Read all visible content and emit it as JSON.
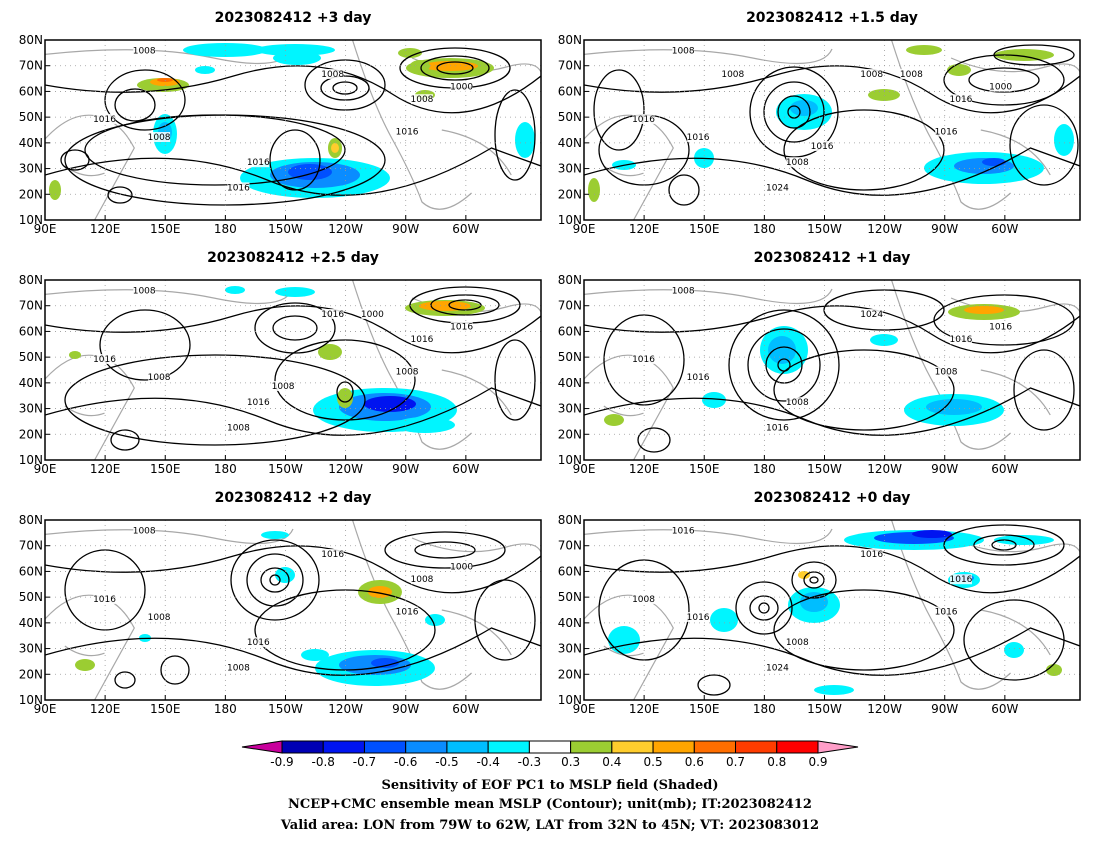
{
  "panels": [
    {
      "title": "2023082412 +3 day",
      "contour_labels": [
        "1008",
        "1016",
        "1008",
        "1016",
        "1016",
        "1008",
        "1008",
        "1016",
        "1000"
      ]
    },
    {
      "title": "2023082412 +1.5 day",
      "contour_labels": [
        "1008",
        "1016",
        "1016",
        "1008",
        "1024",
        "1008",
        "1016",
        "1016",
        "1000",
        "1008",
        "1016",
        "1008"
      ]
    },
    {
      "title": "2023082412 +2.5 day",
      "contour_labels": [
        "1008",
        "1016",
        "1008",
        "1016",
        "1008",
        "1016",
        "1016",
        "1008",
        "1016",
        "1000",
        "1008"
      ]
    },
    {
      "title": "2023082412 +1 day",
      "contour_labels": [
        "1008",
        "1016",
        "1016",
        "1008",
        "1016",
        "1024",
        "1016",
        "1008",
        "1016"
      ]
    },
    {
      "title": "2023082412 +2 day",
      "contour_labels": [
        "1008",
        "1016",
        "1008",
        "1016",
        "1008",
        "1016",
        "1008",
        "1016",
        "1000"
      ]
    },
    {
      "title": "2023082412 +0 day",
      "contour_labels": [
        "1016",
        "1008",
        "1016",
        "1008",
        "1024",
        "1016",
        "1016",
        "1016"
      ]
    }
  ],
  "axes": {
    "lat_ticks": [
      "10N",
      "20N",
      "30N",
      "40N",
      "50N",
      "60N",
      "70N",
      "80N"
    ],
    "lon_ticks": [
      "90E",
      "120E",
      "150E",
      "180",
      "150W",
      "120W",
      "90W",
      "60W"
    ]
  },
  "colorbar": {
    "levels": [
      "-0.9",
      "-0.8",
      "-0.7",
      "-0.6",
      "-0.5",
      "-0.4",
      "-0.3",
      "0.3",
      "0.4",
      "0.5",
      "0.6",
      "0.7",
      "0.8",
      "0.9"
    ],
    "colors": [
      "#c8009c",
      "#0000b4",
      "#0014f0",
      "#0050ff",
      "#0a8cff",
      "#00beff",
      "#00f5ff",
      "#ffffff",
      "#9bcd32",
      "#ffcd2d",
      "#ffa500",
      "#ff6e00",
      "#ff3c00",
      "#ff0000",
      "#ff9ec8"
    ]
  },
  "footer": {
    "line1": "Sensitivity of EOF PC1 to MSLP field (Shaded)",
    "line2": "NCEP+CMC ensemble mean MSLP (Contour); unit(mb); IT:2023082412",
    "line3": "Valid area: LON from 79W to 62W, LAT from 32N to 45N; VT: 2023083012"
  }
}
